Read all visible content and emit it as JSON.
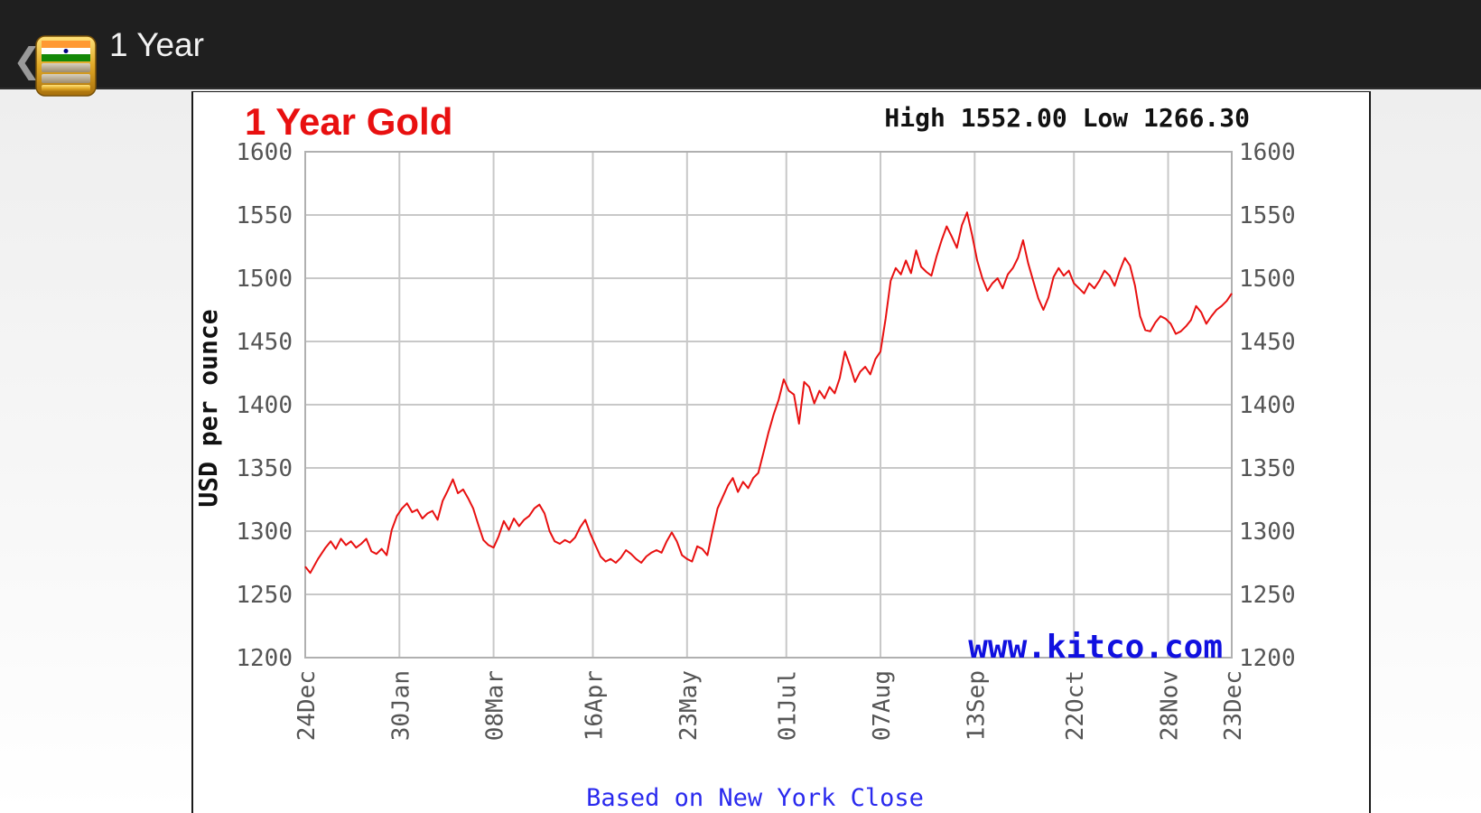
{
  "header": {
    "back_glyph": "❮",
    "title": "1 Year",
    "icon": "gold-bars-app-icon"
  },
  "chart_data": {
    "type": "line",
    "title": "1 Year Gold",
    "high_label": "High 1552.00 Low 1266.30",
    "ylabel": "USD per ounce",
    "watermark": "www.kitco.com",
    "footer_note": "Based on New York Close",
    "ylim": [
      1200,
      1600
    ],
    "yticks": [
      1200,
      1250,
      1300,
      1350,
      1400,
      1450,
      1500,
      1550,
      1600
    ],
    "xticks": [
      {
        "label": "24Dec",
        "day": 0
      },
      {
        "label": "30Jan",
        "day": 37
      },
      {
        "label": "08Mar",
        "day": 74
      },
      {
        "label": "16Apr",
        "day": 113
      },
      {
        "label": "23May",
        "day": 150
      },
      {
        "label": "01Jul",
        "day": 189
      },
      {
        "label": "07Aug",
        "day": 226
      },
      {
        "label": "13Sep",
        "day": 263
      },
      {
        "label": "22Oct",
        "day": 302
      },
      {
        "label": "28Nov",
        "day": 339
      },
      {
        "label": "23Dec",
        "day": 364
      }
    ],
    "grid": true,
    "line_color": "#e81010",
    "series": [
      {
        "values": [
          [
            0,
            1272
          ],
          [
            2,
            1267
          ],
          [
            5,
            1278
          ],
          [
            8,
            1287
          ],
          [
            10,
            1292
          ],
          [
            12,
            1286
          ],
          [
            14,
            1294
          ],
          [
            16,
            1289
          ],
          [
            18,
            1292
          ],
          [
            20,
            1287
          ],
          [
            22,
            1290
          ],
          [
            24,
            1294
          ],
          [
            26,
            1284
          ],
          [
            28,
            1282
          ],
          [
            30,
            1286
          ],
          [
            32,
            1281
          ],
          [
            34,
            1301
          ],
          [
            36,
            1312
          ],
          [
            38,
            1318
          ],
          [
            40,
            1322
          ],
          [
            42,
            1315
          ],
          [
            44,
            1317
          ],
          [
            46,
            1310
          ],
          [
            48,
            1314
          ],
          [
            50,
            1316
          ],
          [
            52,
            1309
          ],
          [
            54,
            1324
          ],
          [
            56,
            1332
          ],
          [
            58,
            1341
          ],
          [
            60,
            1330
          ],
          [
            62,
            1333
          ],
          [
            64,
            1326
          ],
          [
            66,
            1318
          ],
          [
            68,
            1305
          ],
          [
            70,
            1293
          ],
          [
            72,
            1289
          ],
          [
            74,
            1287
          ],
          [
            76,
            1296
          ],
          [
            78,
            1308
          ],
          [
            80,
            1301
          ],
          [
            82,
            1310
          ],
          [
            84,
            1304
          ],
          [
            86,
            1309
          ],
          [
            88,
            1312
          ],
          [
            90,
            1318
          ],
          [
            92,
            1321
          ],
          [
            94,
            1314
          ],
          [
            96,
            1300
          ],
          [
            98,
            1292
          ],
          [
            100,
            1290
          ],
          [
            102,
            1293
          ],
          [
            104,
            1291
          ],
          [
            106,
            1295
          ],
          [
            108,
            1303
          ],
          [
            110,
            1309
          ],
          [
            112,
            1298
          ],
          [
            114,
            1289
          ],
          [
            116,
            1280
          ],
          [
            118,
            1276
          ],
          [
            120,
            1278
          ],
          [
            122,
            1275
          ],
          [
            124,
            1279
          ],
          [
            126,
            1285
          ],
          [
            128,
            1282
          ],
          [
            130,
            1278
          ],
          [
            132,
            1275
          ],
          [
            134,
            1280
          ],
          [
            136,
            1283
          ],
          [
            138,
            1285
          ],
          [
            140,
            1283
          ],
          [
            142,
            1292
          ],
          [
            144,
            1299
          ],
          [
            146,
            1292
          ],
          [
            148,
            1281
          ],
          [
            150,
            1278
          ],
          [
            152,
            1276
          ],
          [
            154,
            1288
          ],
          [
            156,
            1286
          ],
          [
            158,
            1281
          ],
          [
            160,
            1300
          ],
          [
            162,
            1318
          ],
          [
            164,
            1327
          ],
          [
            166,
            1336
          ],
          [
            168,
            1342
          ],
          [
            170,
            1331
          ],
          [
            172,
            1339
          ],
          [
            174,
            1334
          ],
          [
            176,
            1342
          ],
          [
            178,
            1346
          ],
          [
            180,
            1362
          ],
          [
            182,
            1378
          ],
          [
            184,
            1392
          ],
          [
            186,
            1404
          ],
          [
            188,
            1420
          ],
          [
            190,
            1411
          ],
          [
            192,
            1408
          ],
          [
            194,
            1385
          ],
          [
            196,
            1418
          ],
          [
            198,
            1414
          ],
          [
            200,
            1401
          ],
          [
            202,
            1411
          ],
          [
            204,
            1405
          ],
          [
            206,
            1414
          ],
          [
            208,
            1409
          ],
          [
            210,
            1421
          ],
          [
            212,
            1442
          ],
          [
            214,
            1431
          ],
          [
            216,
            1418
          ],
          [
            218,
            1426
          ],
          [
            220,
            1430
          ],
          [
            222,
            1424
          ],
          [
            224,
            1436
          ],
          [
            226,
            1442
          ],
          [
            228,
            1468
          ],
          [
            230,
            1498
          ],
          [
            232,
            1508
          ],
          [
            234,
            1503
          ],
          [
            236,
            1514
          ],
          [
            238,
            1504
          ],
          [
            240,
            1522
          ],
          [
            242,
            1509
          ],
          [
            244,
            1505
          ],
          [
            246,
            1502
          ],
          [
            248,
            1517
          ],
          [
            250,
            1530
          ],
          [
            252,
            1541
          ],
          [
            254,
            1533
          ],
          [
            256,
            1524
          ],
          [
            258,
            1542
          ],
          [
            260,
            1552
          ],
          [
            262,
            1534
          ],
          [
            264,
            1514
          ],
          [
            266,
            1500
          ],
          [
            268,
            1490
          ],
          [
            270,
            1496
          ],
          [
            272,
            1500
          ],
          [
            274,
            1492
          ],
          [
            276,
            1503
          ],
          [
            278,
            1508
          ],
          [
            280,
            1516
          ],
          [
            282,
            1530
          ],
          [
            284,
            1512
          ],
          [
            286,
            1498
          ],
          [
            288,
            1484
          ],
          [
            290,
            1475
          ],
          [
            292,
            1485
          ],
          [
            294,
            1501
          ],
          [
            296,
            1508
          ],
          [
            298,
            1502
          ],
          [
            300,
            1506
          ],
          [
            302,
            1496
          ],
          [
            304,
            1492
          ],
          [
            306,
            1488
          ],
          [
            308,
            1496
          ],
          [
            310,
            1492
          ],
          [
            312,
            1498
          ],
          [
            314,
            1506
          ],
          [
            316,
            1502
          ],
          [
            318,
            1494
          ],
          [
            320,
            1506
          ],
          [
            322,
            1516
          ],
          [
            324,
            1510
          ],
          [
            326,
            1494
          ],
          [
            328,
            1470
          ],
          [
            330,
            1459
          ],
          [
            332,
            1458
          ],
          [
            334,
            1465
          ],
          [
            336,
            1470
          ],
          [
            338,
            1468
          ],
          [
            340,
            1464
          ],
          [
            342,
            1456
          ],
          [
            344,
            1458
          ],
          [
            346,
            1462
          ],
          [
            348,
            1467
          ],
          [
            350,
            1478
          ],
          [
            352,
            1473
          ],
          [
            354,
            1464
          ],
          [
            356,
            1470
          ],
          [
            358,
            1475
          ],
          [
            360,
            1478
          ],
          [
            362,
            1482
          ],
          [
            364,
            1488
          ]
        ]
      }
    ]
  }
}
